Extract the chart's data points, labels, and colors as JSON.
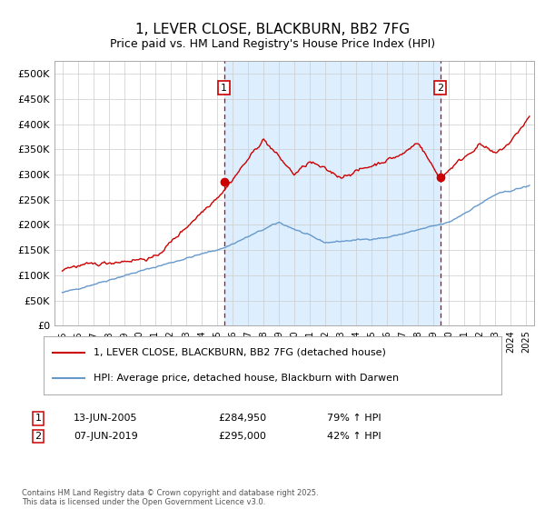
{
  "title": "1, LEVER CLOSE, BLACKBURN, BB2 7FG",
  "subtitle": "Price paid vs. HM Land Registry's House Price Index (HPI)",
  "title_fontsize": 11,
  "background_color": "#ffffff",
  "plot_bg_color": "#ffffff",
  "shaded_region_color": "#ddeeff",
  "legend_line1": "1, LEVER CLOSE, BLACKBURN, BB2 7FG (detached house)",
  "legend_line2": "HPI: Average price, detached house, Blackburn with Darwen",
  "red_line_color": "#cc0000",
  "blue_line_color": "#6699cc",
  "annotation1": {
    "label": "1",
    "date_str": "13-JUN-2005",
    "price": 284950,
    "pct": "79% ↑ HPI",
    "x_year": 2005.45
  },
  "annotation2": {
    "label": "2",
    "date_str": "07-JUN-2019",
    "price": 295000,
    "pct": "42% ↑ HPI",
    "x_year": 2019.44
  },
  "footnote": "Contains HM Land Registry data © Crown copyright and database right 2025.\nThis data is licensed under the Open Government Licence v3.0.",
  "ylim": [
    0,
    525000
  ],
  "yticks": [
    0,
    50000,
    100000,
    150000,
    200000,
    250000,
    300000,
    350000,
    400000,
    450000,
    500000
  ],
  "xlim_start": 1994.5,
  "xlim_end": 2025.5
}
